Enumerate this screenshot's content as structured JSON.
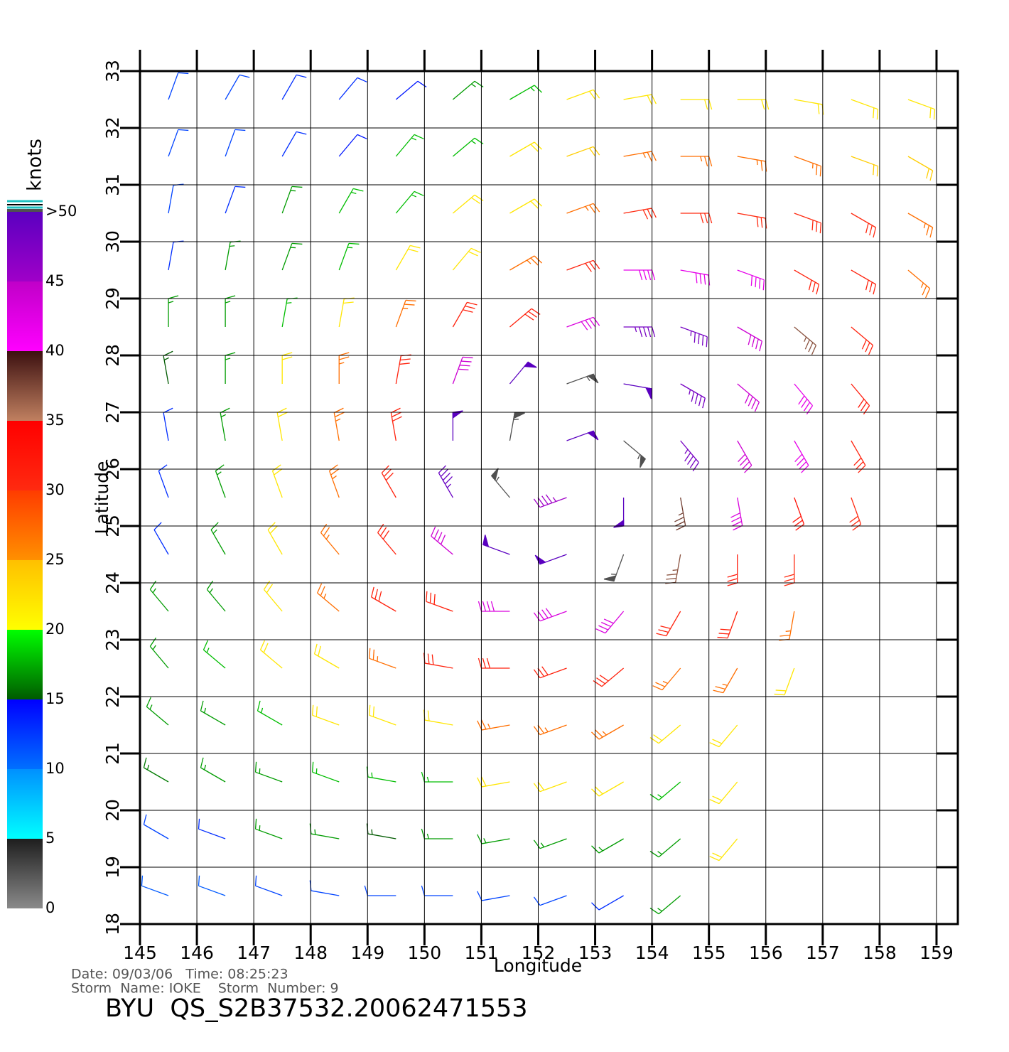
{
  "chart_data": {
    "type": "wind_barbs",
    "x_label": "Longitude",
    "y_label": "Latitude",
    "xlim": [
      145,
      159.375
    ],
    "ylim": [
      18,
      33
    ],
    "xticks": [
      145,
      146,
      147,
      148,
      149,
      150,
      151,
      152,
      153,
      154,
      155,
      156,
      157,
      158,
      159
    ],
    "yticks": [
      18,
      19,
      20,
      21,
      22,
      23,
      24,
      25,
      26,
      27,
      28,
      29,
      30,
      31,
      32,
      33
    ],
    "grid": true,
    "wind": {
      "lons": [
        145.5,
        146.5,
        147.5,
        148.5,
        149.5,
        150.5,
        151.5,
        152.5,
        153.5,
        154.5,
        155.5,
        156.5,
        157.5,
        158.5
      ],
      "lats": [
        32.5,
        31.5,
        30.5,
        29.5,
        28.5,
        27.5,
        26.5,
        25.5,
        24.5,
        23.5,
        22.5,
        21.5,
        20.5,
        19.5,
        18.5
      ],
      "speed": [
        [
          12,
          12,
          13,
          13,
          14,
          17,
          18,
          22,
          22,
          22,
          22,
          22,
          22,
          22
        ],
        [
          12,
          12,
          13,
          14,
          18,
          18,
          22,
          24,
          27,
          27,
          27,
          27,
          24,
          24
        ],
        [
          12,
          13,
          17,
          18,
          18,
          22,
          22,
          27,
          30,
          30,
          30,
          30,
          30,
          27
        ],
        [
          13,
          17,
          17,
          18,
          22,
          22,
          27,
          31,
          42,
          42,
          42,
          31,
          31,
          27
        ],
        [
          17,
          17,
          18,
          22,
          27,
          31,
          31,
          43,
          48,
          48,
          44,
          37,
          31,
          null
        ],
        [
          15,
          17,
          22,
          27,
          31,
          44,
          50,
          55,
          50,
          48,
          44,
          42,
          32,
          null
        ],
        [
          13,
          17,
          22,
          27,
          31,
          50,
          55,
          50,
          55,
          48,
          44,
          42,
          31,
          null
        ],
        [
          13,
          17,
          22,
          27,
          31,
          49,
          55,
          45,
          50,
          38,
          43,
          33,
          30,
          null
        ],
        [
          13,
          17,
          22,
          27,
          31,
          44,
          50,
          50,
          55,
          37,
          32,
          30,
          null,
          null
        ],
        [
          17,
          17,
          22,
          27,
          31,
          31,
          43,
          43,
          43,
          31,
          31,
          27,
          null,
          null
        ],
        [
          17,
          18,
          22,
          22,
          27,
          31,
          31,
          31,
          31,
          27,
          27,
          22,
          null,
          null
        ],
        [
          17,
          17,
          18,
          22,
          22,
          22,
          27,
          27,
          27,
          22,
          22,
          null,
          null,
          null
        ],
        [
          16,
          17,
          17,
          18,
          18,
          18,
          22,
          22,
          22,
          18,
          22,
          null,
          null,
          null
        ],
        [
          12,
          13,
          17,
          17,
          15,
          17,
          17,
          17,
          17,
          17,
          22,
          null,
          null,
          null
        ],
        [
          11,
          11,
          12,
          12,
          12,
          12,
          12,
          12,
          13,
          17,
          null,
          null,
          null,
          null
        ]
      ],
      "direction": [
        [
          20,
          30,
          30,
          40,
          50,
          50,
          60,
          70,
          80,
          90,
          90,
          100,
          110,
          110
        ],
        [
          20,
          20,
          30,
          40,
          40,
          50,
          60,
          70,
          80,
          90,
          100,
          110,
          110,
          120
        ],
        [
          10,
          20,
          20,
          30,
          40,
          50,
          60,
          70,
          80,
          90,
          100,
          110,
          120,
          120
        ],
        [
          10,
          10,
          20,
          20,
          30,
          40,
          60,
          70,
          90,
          100,
          110,
          120,
          120,
          130
        ],
        [
          0,
          0,
          10,
          10,
          20,
          30,
          50,
          70,
          90,
          110,
          120,
          130,
          130,
          null
        ],
        [
          350,
          0,
          0,
          0,
          10,
          20,
          40,
          70,
          100,
          120,
          130,
          140,
          140,
          null
        ],
        [
          350,
          350,
          350,
          350,
          350,
          0,
          10,
          70,
          130,
          140,
          150,
          150,
          150,
          null
        ],
        [
          340,
          340,
          340,
          340,
          330,
          330,
          320,
          250,
          180,
          170,
          170,
          160,
          160,
          null
        ],
        [
          330,
          330,
          330,
          320,
          320,
          310,
          290,
          250,
          200,
          190,
          180,
          180,
          null,
          null
        ],
        [
          320,
          320,
          320,
          310,
          300,
          290,
          270,
          250,
          220,
          210,
          200,
          190,
          null,
          null
        ],
        [
          320,
          310,
          310,
          300,
          290,
          280,
          270,
          250,
          230,
          220,
          210,
          200,
          null,
          null
        ],
        [
          310,
          300,
          300,
          290,
          290,
          280,
          260,
          250,
          240,
          230,
          220,
          null,
          null,
          null
        ],
        [
          300,
          300,
          290,
          290,
          280,
          270,
          260,
          250,
          240,
          230,
          220,
          null,
          null,
          null
        ],
        [
          300,
          290,
          290,
          280,
          280,
          270,
          260,
          250,
          240,
          230,
          220,
          null,
          null,
          null
        ],
        [
          290,
          290,
          290,
          280,
          270,
          270,
          260,
          250,
          240,
          230,
          null,
          null,
          null,
          null
        ]
      ]
    },
    "colorbar": {
      "label": "knots",
      "stops": [
        [
          0,
          "#8a8a8a"
        ],
        [
          5,
          "#1e1e1e"
        ],
        [
          5,
          "#00ffff"
        ],
        [
          10,
          "#0090ff"
        ],
        [
          10,
          "#0070ff"
        ],
        [
          15,
          "#0000ff"
        ],
        [
          15,
          "#005a00"
        ],
        [
          20,
          "#00ff00"
        ],
        [
          20,
          "#ffff00"
        ],
        [
          25,
          "#ffc000"
        ],
        [
          25,
          "#ff9000"
        ],
        [
          30,
          "#ff3c00"
        ],
        [
          30,
          "#ff2a10"
        ],
        [
          35,
          "#ff0000"
        ],
        [
          35,
          "#c08060"
        ],
        [
          40,
          "#3c1010"
        ],
        [
          40,
          "#ff00ff"
        ],
        [
          45,
          "#c000c8"
        ],
        [
          45,
          "#a000c8"
        ],
        [
          50,
          "#5a00c0"
        ]
      ],
      "over_color": "#505050",
      "ticks": [
        0,
        5,
        10,
        15,
        20,
        25,
        30,
        35,
        40,
        45,
        {
          "value": 50,
          "label": ">50"
        }
      ]
    },
    "annotations": [
      "Date: 09/03/06   Time: 08:25:23",
      "Storm  Name: IOKE    Storm  Number: 9"
    ],
    "caption": "BYU  QS_S2B37532.20062471553"
  }
}
